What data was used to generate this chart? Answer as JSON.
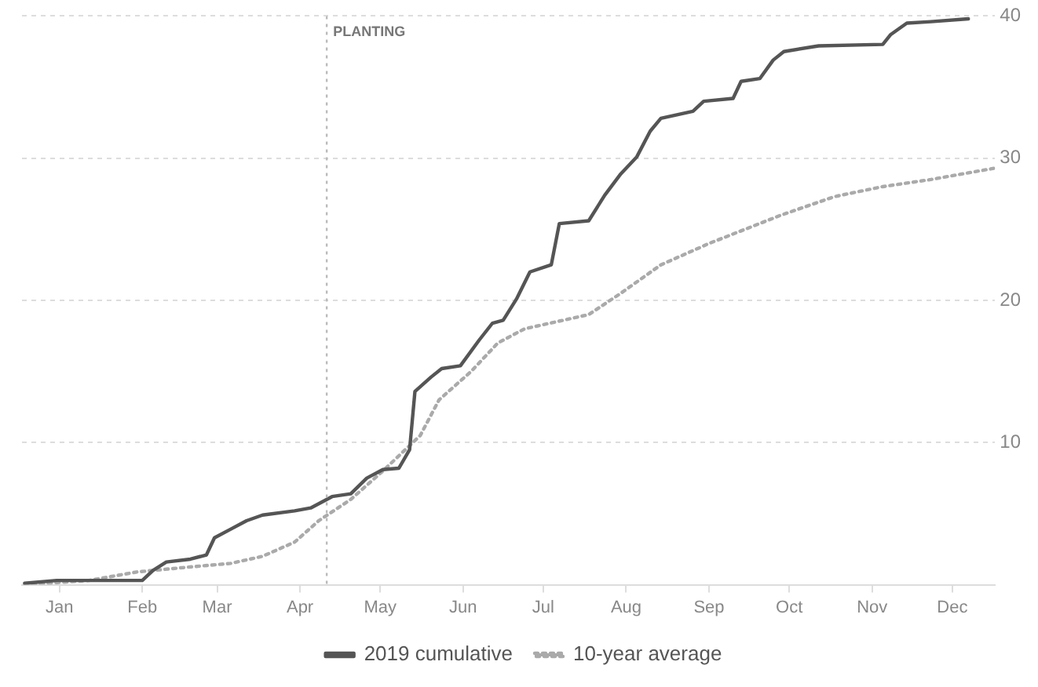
{
  "chart_data": {
    "type": "line",
    "xlim": [
      "--01-01",
      "--12-31"
    ],
    "xticks": [
      {
        "value": "--01-15",
        "label": "Jan"
      },
      {
        "value": "--02-15",
        "label": "Feb"
      },
      {
        "value": "--03-15",
        "label": "Mar"
      },
      {
        "value": "--04-15",
        "label": "Apr"
      },
      {
        "value": "--05-15",
        "label": "May"
      },
      {
        "value": "--06-15",
        "label": "Jun"
      },
      {
        "value": "--07-15",
        "label": "Jul"
      },
      {
        "value": "--08-15",
        "label": "Aug"
      },
      {
        "value": "--09-15",
        "label": "Sep"
      },
      {
        "value": "--10-15",
        "label": "Oct"
      },
      {
        "value": "--11-15",
        "label": "Nov"
      },
      {
        "value": "--12-15",
        "label": "Dec"
      }
    ],
    "ylim": [
      0,
      40
    ],
    "yticks": [
      10,
      20,
      30,
      40
    ],
    "grid": "y",
    "legend": "bottom",
    "marker": "none",
    "ref_lines": [
      {
        "axis": "x",
        "value": "--04-25",
        "label": "PLANTING",
        "color": "#bbbbbb",
        "line_style": "dotted"
      }
    ],
    "series": [
      {
        "name": "2019 cumulative",
        "color": "#555555",
        "line_style": "solid",
        "x": [
          "--01-02",
          "--01-14",
          "--02-15",
          "--02-19",
          "--02-24",
          "--03-05",
          "--03-11",
          "--03-14",
          "--03-20",
          "--03-26",
          "--04-01",
          "--04-13",
          "--04-19",
          "--04-27",
          "--05-04",
          "--05-10",
          "--05-16",
          "--05-22",
          "--05-26",
          "--05-28",
          "--06-03",
          "--06-07",
          "--06-14",
          "--06-21",
          "--06-26",
          "--06-30",
          "--07-05",
          "--07-10",
          "--07-18",
          "--07-21",
          "--08-01",
          "--08-07",
          "--08-13",
          "--08-19",
          "--08-24",
          "--08-28",
          "--09-09",
          "--09-13",
          "--09-24",
          "--09-27",
          "--10-04",
          "--10-09",
          "--10-13",
          "--10-26",
          "--11-19",
          "--11-22",
          "--11-28",
          "--12-07",
          "--12-21"
        ],
        "values": [
          0.1,
          0.3,
          0.3,
          1,
          1.6,
          1.8,
          2.1,
          3.3,
          3.9,
          4.5,
          4.9,
          5.2,
          5.4,
          6.2,
          6.4,
          7.5,
          8.1,
          8.2,
          9.5,
          13.6,
          14.6,
          15.2,
          15.4,
          17.2,
          18.4,
          18.6,
          20.1,
          22,
          22.5,
          25.4,
          25.6,
          27.4,
          28.9,
          30.1,
          31.9,
          32.8,
          33.3,
          34,
          34.2,
          35.4,
          35.6,
          36.9,
          37.5,
          37.9,
          38,
          38.7,
          39.5,
          39.6,
          39.8
        ]
      },
      {
        "name": "10-year average",
        "color": "#aaaaaa",
        "line_style": "dotted",
        "x": [
          "--01-02",
          "--01-26",
          "--02-13",
          "--03-02",
          "--03-20",
          "--04-01",
          "--04-13",
          "--04-22",
          "--05-04",
          "--05-16",
          "--05-30",
          "--06-06",
          "--06-18",
          "--06-28",
          "--07-08",
          "--08-01",
          "--08-13",
          "--08-28",
          "--09-15",
          "--10-12",
          "--11-01",
          "--11-19",
          "--12-07",
          "--12-31"
        ],
        "values": [
          0,
          0.3,
          0.9,
          1.2,
          1.5,
          2,
          3,
          4.5,
          6,
          8,
          10.5,
          13,
          15,
          17,
          18,
          19,
          20.5,
          22.5,
          24,
          26,
          27.3,
          28,
          28.5,
          29.3
        ]
      }
    ]
  }
}
